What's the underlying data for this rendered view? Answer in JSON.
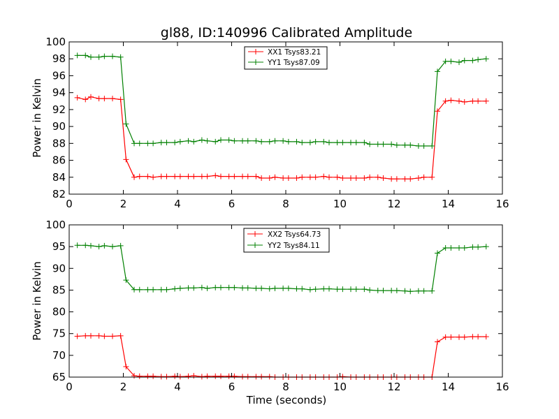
{
  "chart_data": [
    {
      "type": "line",
      "title": "gl88, ID:140996 Calibrated Amplitude",
      "xlabel": "",
      "ylabel": "Power in Kelvin",
      "xlim": [
        0,
        16
      ],
      "ylim": [
        82,
        100
      ],
      "xticks": [
        0,
        2,
        4,
        6,
        8,
        10,
        12,
        14,
        16
      ],
      "yticks": [
        82,
        84,
        86,
        88,
        90,
        92,
        94,
        96,
        98,
        100
      ],
      "legend_position": "top-center",
      "x": [
        0.3,
        0.6,
        0.8,
        1.1,
        1.3,
        1.6,
        1.9,
        2.1,
        2.4,
        2.6,
        2.9,
        3.1,
        3.4,
        3.6,
        3.9,
        4.1,
        4.4,
        4.6,
        4.9,
        5.1,
        5.4,
        5.6,
        5.9,
        6.1,
        6.4,
        6.6,
        6.9,
        7.1,
        7.4,
        7.6,
        7.9,
        8.1,
        8.4,
        8.6,
        8.9,
        9.1,
        9.4,
        9.6,
        9.9,
        10.1,
        10.4,
        10.6,
        10.9,
        11.1,
        11.4,
        11.6,
        11.9,
        12.1,
        12.4,
        12.6,
        12.9,
        13.1,
        13.4,
        13.6,
        13.9,
        14.1,
        14.4,
        14.6,
        14.9,
        15.1,
        15.4
      ],
      "series": [
        {
          "name": "XX1 Tsys83.21",
          "color": "#ff0000",
          "values": [
            93.4,
            93.2,
            93.5,
            93.3,
            93.3,
            93.3,
            93.2,
            86.1,
            84.0,
            84.1,
            84.1,
            84.0,
            84.1,
            84.1,
            84.1,
            84.1,
            84.1,
            84.1,
            84.1,
            84.1,
            84.2,
            84.1,
            84.1,
            84.1,
            84.1,
            84.1,
            84.1,
            83.9,
            83.9,
            84.0,
            83.9,
            83.9,
            83.9,
            84.0,
            84.0,
            84.0,
            84.1,
            84.0,
            84.0,
            83.9,
            83.9,
            83.9,
            83.9,
            84.0,
            84.0,
            83.9,
            83.8,
            83.8,
            83.8,
            83.8,
            83.9,
            84.0,
            84.0,
            91.8,
            93.0,
            93.1,
            93.0,
            92.9,
            93.0,
            93.0,
            93.0
          ]
        },
        {
          "name": "YY1 Tsys87.09",
          "color": "#008000",
          "values": [
            98.4,
            98.4,
            98.2,
            98.2,
            98.3,
            98.3,
            98.2,
            90.3,
            88.0,
            88.0,
            88.0,
            88.0,
            88.1,
            88.1,
            88.1,
            88.2,
            88.3,
            88.2,
            88.4,
            88.3,
            88.2,
            88.4,
            88.4,
            88.3,
            88.3,
            88.3,
            88.3,
            88.2,
            88.2,
            88.3,
            88.3,
            88.2,
            88.2,
            88.1,
            88.1,
            88.2,
            88.2,
            88.1,
            88.1,
            88.1,
            88.1,
            88.1,
            88.1,
            87.9,
            87.9,
            87.9,
            87.9,
            87.8,
            87.8,
            87.8,
            87.7,
            87.7,
            87.7,
            96.5,
            97.7,
            97.7,
            97.6,
            97.8,
            97.8,
            97.9,
            98.0
          ]
        }
      ]
    },
    {
      "type": "line",
      "title": "",
      "xlabel": "Time (seconds)",
      "ylabel": "Power in Kelvin",
      "xlim": [
        0,
        16
      ],
      "ylim": [
        65,
        100
      ],
      "xticks": [
        0,
        2,
        4,
        6,
        8,
        10,
        12,
        14,
        16
      ],
      "yticks": [
        65,
        70,
        75,
        80,
        85,
        90,
        95,
        100
      ],
      "legend_position": "top-center",
      "x": [
        0.3,
        0.6,
        0.8,
        1.1,
        1.3,
        1.6,
        1.9,
        2.1,
        2.4,
        2.6,
        2.9,
        3.1,
        3.4,
        3.6,
        3.9,
        4.1,
        4.4,
        4.6,
        4.9,
        5.1,
        5.4,
        5.6,
        5.9,
        6.1,
        6.4,
        6.6,
        6.9,
        7.1,
        7.4,
        7.6,
        7.9,
        8.1,
        8.4,
        8.6,
        8.9,
        9.1,
        9.4,
        9.6,
        9.9,
        10.1,
        10.4,
        10.6,
        10.9,
        11.1,
        11.4,
        11.6,
        11.9,
        12.1,
        12.4,
        12.6,
        12.9,
        13.1,
        13.4,
        13.6,
        13.9,
        14.1,
        14.4,
        14.6,
        14.9,
        15.1,
        15.4
      ],
      "series": [
        {
          "name": "XX2 Tsys64.73",
          "color": "#ff0000",
          "values": [
            74.4,
            74.5,
            74.5,
            74.5,
            74.4,
            74.4,
            74.5,
            67.4,
            65.3,
            65.2,
            65.2,
            65.2,
            65.1,
            65.1,
            65.2,
            65.1,
            65.2,
            65.3,
            65.1,
            65.2,
            65.2,
            65.2,
            65.2,
            65.2,
            65.1,
            65.1,
            65.1,
            65.1,
            65.1,
            65.0,
            65.0,
            65.0,
            65.0,
            65.0,
            65.0,
            65.0,
            65.0,
            65.0,
            65.0,
            65.1,
            65.0,
            65.0,
            65.0,
            64.9,
            64.9,
            64.9,
            64.9,
            64.9,
            64.9,
            64.8,
            64.8,
            64.8,
            64.8,
            73.1,
            74.2,
            74.2,
            74.2,
            74.2,
            74.3,
            74.3,
            74.3
          ]
        },
        {
          "name": "YY2 Tsys84.11",
          "color": "#008000",
          "values": [
            95.3,
            95.3,
            95.2,
            95.0,
            95.2,
            95.0,
            95.2,
            87.3,
            85.1,
            85.1,
            85.1,
            85.1,
            85.1,
            85.1,
            85.3,
            85.4,
            85.5,
            85.5,
            85.6,
            85.4,
            85.6,
            85.6,
            85.6,
            85.6,
            85.5,
            85.5,
            85.4,
            85.4,
            85.3,
            85.4,
            85.4,
            85.4,
            85.3,
            85.3,
            85.1,
            85.2,
            85.3,
            85.3,
            85.2,
            85.2,
            85.2,
            85.2,
            85.2,
            85.0,
            84.9,
            84.9,
            84.9,
            84.9,
            84.8,
            84.7,
            84.8,
            84.8,
            84.8,
            93.5,
            94.7,
            94.7,
            94.7,
            94.7,
            94.9,
            94.9,
            95.0
          ]
        }
      ]
    }
  ]
}
